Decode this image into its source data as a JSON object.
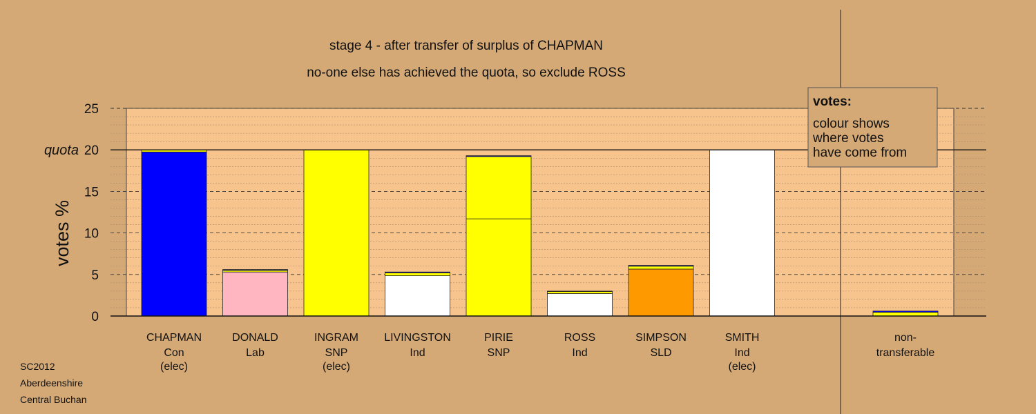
{
  "chart_data": {
    "type": "bar",
    "stacked": true,
    "title": "stage 4 - after transfer of surplus of CHAPMAN",
    "subtitle": "no-one else has achieved the quota, so exclude ROSS",
    "ylabel": "votes %",
    "ylim": [
      0,
      25
    ],
    "yticks": [
      0,
      5,
      10,
      15,
      20,
      25
    ],
    "quota": 20,
    "quota_label": "quota",
    "grid": true,
    "legend_position": "top-right",
    "colors": {
      "Con": "#0000ff",
      "Lab": "#ffb6c1",
      "SNP": "#ffff00",
      "Ind": "#ffffff",
      "SLD": "#ff9900",
      "background": "#d4a976",
      "plot_area": "#f8c48e"
    },
    "categories": [
      {
        "name": "CHAPMAN",
        "party": "Con",
        "status": "(elec)",
        "segments": [
          {
            "source": "Con",
            "value": 19.75
          },
          {
            "source": "SNP",
            "value": 0.25
          }
        ]
      },
      {
        "name": "DONALD",
        "party": "Lab",
        "status": "",
        "segments": [
          {
            "source": "Lab",
            "value": 5.3
          },
          {
            "source": "SNP",
            "value": 0.2
          },
          {
            "source": "Con",
            "value": 0.1
          }
        ]
      },
      {
        "name": "INGRAM",
        "party": "SNP",
        "status": "(elec)",
        "segments": [
          {
            "source": "SNP",
            "value": 20
          }
        ]
      },
      {
        "name": "LIVINGSTON",
        "party": "Ind",
        "status": "",
        "segments": [
          {
            "source": "Ind",
            "value": 4.85
          },
          {
            "source": "SNP",
            "value": 0.35
          },
          {
            "source": "Con",
            "value": 0.1
          }
        ]
      },
      {
        "name": "PIRIE",
        "party": "SNP",
        "status": "",
        "segments": [
          {
            "source": "SNP",
            "value": 11.7
          },
          {
            "source": "SNP",
            "value": 7.5
          },
          {
            "source": "Con",
            "value": 0.1
          }
        ]
      },
      {
        "name": "ROSS",
        "party": "Ind",
        "status": "",
        "segments": [
          {
            "source": "Ind",
            "value": 2.7
          },
          {
            "source": "SNP",
            "value": 0.25
          },
          {
            "source": "Con",
            "value": 0.05
          }
        ]
      },
      {
        "name": "SIMPSON",
        "party": "SLD",
        "status": "",
        "segments": [
          {
            "source": "SLD",
            "value": 5.65
          },
          {
            "source": "SNP",
            "value": 0.35
          },
          {
            "source": "Con",
            "value": 0.1
          }
        ]
      },
      {
        "name": "SMITH",
        "party": "Ind",
        "status": "(elec)",
        "segments": [
          {
            "source": "Ind",
            "value": 20
          }
        ]
      }
    ],
    "non_transferable": {
      "label_line1": "non-",
      "label_line2": "transferable",
      "segments": [
        {
          "source": "SNP",
          "value": 0.45
        },
        {
          "source": "Con",
          "value": 0.15
        }
      ]
    },
    "legend": {
      "title": "votes:",
      "lines": [
        "colour shows",
        "where votes",
        "have come from"
      ]
    },
    "footer": [
      "SC2012",
      "Aberdeenshire",
      "Central Buchan"
    ]
  }
}
